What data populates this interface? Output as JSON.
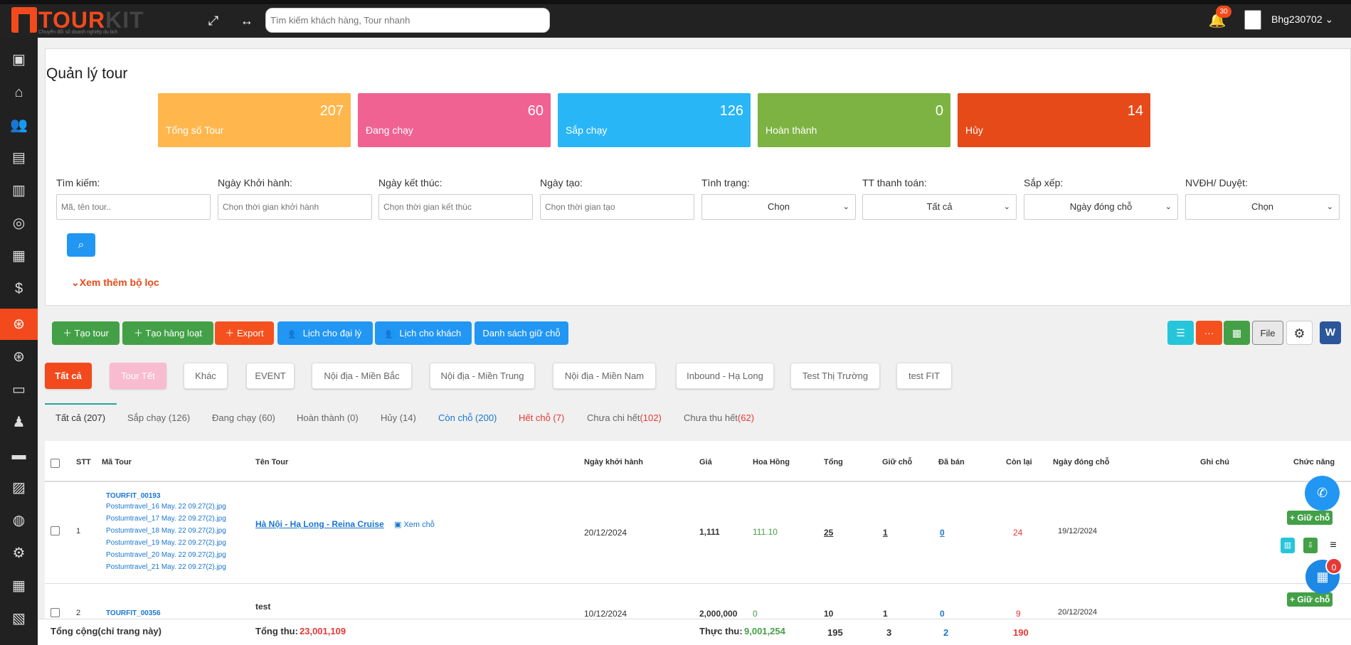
{
  "header": {
    "logo_main": "TOUR",
    "logo_kit": "KIT",
    "logo_sub": "Chuyển đổi số doanh nghiệp du lịch",
    "search_placeholder": "Tìm kiếm khách hàng, Tour nhanh",
    "notification_count": "30",
    "username": "Bhg230702 ⌄"
  },
  "page": {
    "title": "Quản lý tour"
  },
  "stats": [
    {
      "value": "207",
      "label": "Tổng số Tour",
      "color": "#ffb74d"
    },
    {
      "value": "60",
      "label": "Đang chạy",
      "color": "#f06292"
    },
    {
      "value": "126",
      "label": "Sắp chạy",
      "color": "#29b6f6"
    },
    {
      "value": "0",
      "label": "Hoàn thành",
      "color": "#7cb342"
    },
    {
      "value": "14",
      "label": "Hủy",
      "color": "#e64a19"
    }
  ],
  "filters": {
    "search_label": "Tìm kiếm:",
    "search_placeholder": "Mã, tên tour..",
    "start_label": "Ngày Khởi hành:",
    "start_placeholder": "Chọn thời gian khởi hành",
    "end_label": "Ngày kết thúc:",
    "end_placeholder": "Chọn thời gian kết thúc",
    "created_label": "Ngày tạo:",
    "created_placeholder": "Chọn thời gian tạo",
    "status_label": "Tình trạng:",
    "status_value": "Chọn",
    "payment_label": "TT thanh toán:",
    "payment_value": "Tất cả",
    "sort_label": "Sắp xếp:",
    "sort_value": "Ngày đóng chỗ",
    "staff_label": "NVĐH/ Duyệt:",
    "staff_value": "Chọn",
    "more_filter": "Xem thêm bộ lọc"
  },
  "actions": {
    "create_tour": "Tạo tour",
    "create_bulk": "Tạo hàng loạt",
    "export": "Export",
    "agent_schedule": "Lịch cho đại lý",
    "customer_schedule": "Lịch cho khách",
    "hold_list": "Danh sách giữ chỗ",
    "file": "File",
    "word": "W"
  },
  "categories": [
    "Tất cả",
    "Tour Tết",
    "Khác",
    "EVENT",
    "Nội địa - Miền Bắc",
    "Nội địa - Miền Trung",
    "Nội địa - Miền Nam",
    "Inbound - Hạ Long",
    "Test Thị Trường",
    "test FIT"
  ],
  "status_tabs": [
    {
      "label": "Tất cả (207)",
      "color": "#333"
    },
    {
      "label": "Sắp chạy (126)",
      "color": "#666"
    },
    {
      "label": "Đang chạy (60)",
      "color": "#666"
    },
    {
      "label": "Hoàn thành (0)",
      "color": "#666"
    },
    {
      "label": "Hủy (14)",
      "color": "#666"
    },
    {
      "label": "Còn chỗ (200)",
      "color": "#1976d2"
    },
    {
      "label": "Hết chỗ (7)",
      "color": "#e53935"
    }
  ],
  "tab_unpaid": {
    "label": "Chưa chi hết",
    "count": "(102)"
  },
  "tab_uncollected": {
    "label": "Chưa thu hết",
    "count": "(62)"
  },
  "table": {
    "headers": {
      "stt": "STT",
      "code": "Mã Tour",
      "name": "Tên Tour",
      "start": "Ngày khởi hành",
      "price": "Giá",
      "commission": "Hoa Hồng",
      "total": "Tổng",
      "hold": "Giữ chỗ",
      "sold": "Đã bán",
      "remaining": "Còn lại",
      "close_date": "Ngày đóng chỗ",
      "note": "Ghi chú",
      "functions": "Chức năng"
    },
    "rows": [
      {
        "stt": "1",
        "code": "TOURFIT_00193",
        "files": [
          "Postumtravel_16 May. 22 09.27(2).jpg",
          "Postumtravel_17 May. 22 09.27(2).jpg",
          "Postumtravel_18 May. 22 09.27(2).jpg",
          "Postumtravel_19 May. 22 09.27(2).jpg",
          "Postumtravel_20 May. 22 09.27(2).jpg",
          "Postumtravel_21 May. 22 09.27(2).jpg"
        ],
        "name": "Hà Nội - Hạ Long - Reina Cruise",
        "view_seats": "Xem chỗ",
        "start": "20/12/2024",
        "price": "1,111",
        "commission": "111.10",
        "total": "25",
        "hold": "1",
        "sold": "0",
        "remaining": "24",
        "close_date": "19/12/2024",
        "hold_button": "+ Giữ chỗ"
      },
      {
        "stt": "2",
        "code": "TOURFIT_00356",
        "name": "test",
        "start": "10/12/2024",
        "price": "2,000,000",
        "commission": "0",
        "total": "10",
        "hold": "1",
        "sold": "0",
        "remaining": "9",
        "close_date": "20/12/2024",
        "hold_button": "+ Giữ chỗ"
      }
    ]
  },
  "footer": {
    "label": "Tổng cộng(chỉ trang này)",
    "revenue_label": "Tổng thu:",
    "revenue_value": "23,001,109",
    "actual_label": "Thực thu:",
    "actual_value": "9,001,254",
    "total": "195",
    "hold": "3",
    "sold": "2",
    "remaining": "190"
  },
  "fab_badge": "0"
}
